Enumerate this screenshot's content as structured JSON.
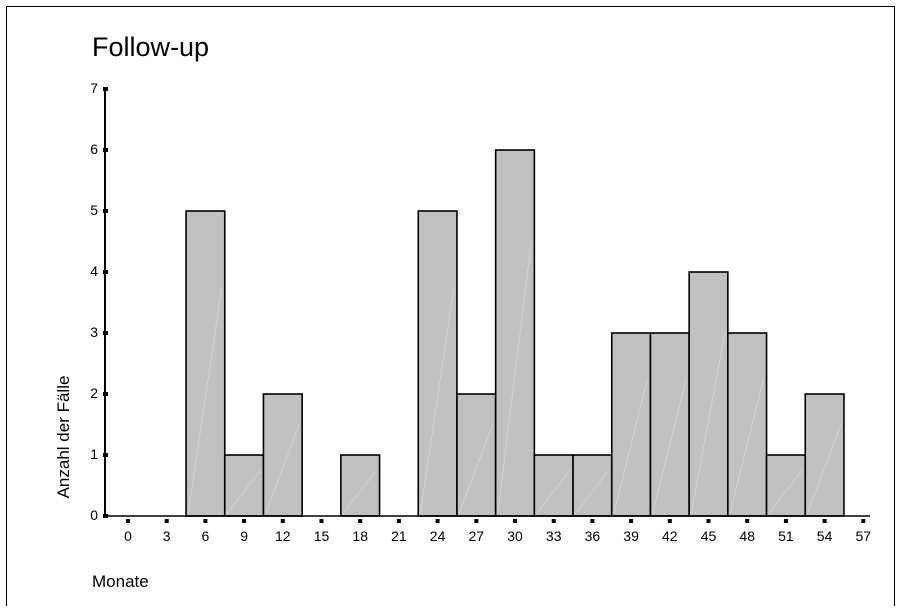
{
  "chart_data": {
    "type": "bar",
    "title": "Follow-up",
    "xlabel": "Monate",
    "ylabel": "Anzahl der Fälle",
    "x_ticks": [
      0,
      3,
      6,
      9,
      12,
      15,
      18,
      21,
      24,
      27,
      30,
      33,
      36,
      39,
      42,
      45,
      48,
      51,
      54,
      57
    ],
    "y_ticks": [
      0,
      1,
      2,
      3,
      4,
      5,
      6,
      7
    ],
    "bin_width": 3,
    "bins": [
      {
        "center": 6,
        "value": 5
      },
      {
        "center": 9,
        "value": 1
      },
      {
        "center": 12,
        "value": 2
      },
      {
        "center": 18,
        "value": 1
      },
      {
        "center": 24,
        "value": 5
      },
      {
        "center": 27,
        "value": 2
      },
      {
        "center": 30,
        "value": 6
      },
      {
        "center": 33,
        "value": 1
      },
      {
        "center": 36,
        "value": 1
      },
      {
        "center": 39,
        "value": 3
      },
      {
        "center": 42,
        "value": 3
      },
      {
        "center": 45,
        "value": 4
      },
      {
        "center": 48,
        "value": 3
      },
      {
        "center": 51,
        "value": 1
      },
      {
        "center": 54,
        "value": 2
      }
    ],
    "xlim": [
      0,
      57
    ],
    "ylim": [
      0,
      7
    ],
    "grid": false,
    "bar_color": "#c0c0c0",
    "edge_color": "#000000"
  }
}
